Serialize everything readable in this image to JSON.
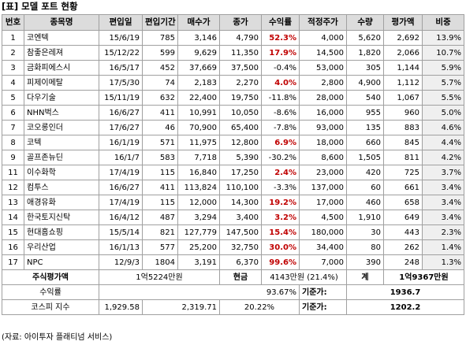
{
  "title": "[표] 모델 포트 현황",
  "headers": [
    "번호",
    "종목명",
    "편입일",
    "편입기간",
    "매수가",
    "종가",
    "수익률",
    "적정주가",
    "수량",
    "평가액",
    "비중"
  ],
  "rows": [
    {
      "no": "1",
      "name": "코엔텍",
      "date": "15/6/19",
      "period": "785",
      "buy": "3,146",
      "close": "4,790",
      "ret": "52.3%",
      "fair": "4,000",
      "qty": "5,620",
      "value": "2,692",
      "weight": "13.9%"
    },
    {
      "no": "2",
      "name": "참좋은레져",
      "date": "15/12/22",
      "period": "599",
      "buy": "9,629",
      "close": "11,350",
      "ret": "17.9%",
      "fair": "14,500",
      "qty": "1,820",
      "value": "2,066",
      "weight": "10.7%"
    },
    {
      "no": "3",
      "name": "금화피에스시",
      "date": "16/5/17",
      "period": "452",
      "buy": "37,669",
      "close": "37,500",
      "ret": "-0.4%",
      "fair": "53,000",
      "qty": "305",
      "value": "1,144",
      "weight": "5.9%"
    },
    {
      "no": "4",
      "name": "피제이메탈",
      "date": "17/5/30",
      "period": "74",
      "buy": "2,183",
      "close": "2,270",
      "ret": "4.0%",
      "fair": "2,800",
      "qty": "4,900",
      "value": "1,112",
      "weight": "5.7%"
    },
    {
      "no": "5",
      "name": "다우기술",
      "date": "15/11/19",
      "period": "632",
      "buy": "22,400",
      "close": "19,750",
      "ret": "-11.8%",
      "fair": "28,000",
      "qty": "540",
      "value": "1,067",
      "weight": "5.5%"
    },
    {
      "no": "6",
      "name": "NHN벅스",
      "date": "16/6/27",
      "period": "411",
      "buy": "10,991",
      "close": "10,050",
      "ret": "-8.6%",
      "fair": "16,000",
      "qty": "955",
      "value": "960",
      "weight": "5.0%"
    },
    {
      "no": "7",
      "name": "코오롱인더",
      "date": "17/6/27",
      "period": "46",
      "buy": "70,900",
      "close": "65,400",
      "ret": "-7.8%",
      "fair": "93,000",
      "qty": "135",
      "value": "883",
      "weight": "4.6%"
    },
    {
      "no": "8",
      "name": "코텍",
      "date": "16/1/19",
      "period": "571",
      "buy": "11,975",
      "close": "12,800",
      "ret": "6.9%",
      "fair": "18,000",
      "qty": "660",
      "value": "845",
      "weight": "4.4%"
    },
    {
      "no": "9",
      "name": "골프존뉴딘",
      "date": "16/1/7",
      "period": "583",
      "buy": "7,718",
      "close": "5,390",
      "ret": "-30.2%",
      "fair": "8,600",
      "qty": "1,505",
      "value": "811",
      "weight": "4.2%"
    },
    {
      "no": "11",
      "name": "이수화학",
      "date": "17/4/19",
      "period": "115",
      "buy": "16,840",
      "close": "17,250",
      "ret": "2.4%",
      "fair": "23,000",
      "qty": "420",
      "value": "725",
      "weight": "3.7%"
    },
    {
      "no": "12",
      "name": "컴투스",
      "date": "16/6/27",
      "period": "411",
      "buy": "113,824",
      "close": "110,100",
      "ret": "-3.3%",
      "fair": "137,000",
      "qty": "60",
      "value": "661",
      "weight": "3.4%"
    },
    {
      "no": "13",
      "name": "애경유화",
      "date": "17/4/19",
      "period": "115",
      "buy": "12,000",
      "close": "14,300",
      "ret": "19.2%",
      "fair": "17,000",
      "qty": "460",
      "value": "658",
      "weight": "3.4%"
    },
    {
      "no": "14",
      "name": "한국토지신탁",
      "date": "16/4/12",
      "period": "487",
      "buy": "3,294",
      "close": "3,400",
      "ret": "3.2%",
      "fair": "4,500",
      "qty": "1,910",
      "value": "649",
      "weight": "3.4%"
    },
    {
      "no": "15",
      "name": "현대홈쇼핑",
      "date": "15/5/14",
      "period": "821",
      "buy": "127,779",
      "close": "147,500",
      "ret": "15.4%",
      "fair": "180,000",
      "qty": "30",
      "value": "443",
      "weight": "2.3%"
    },
    {
      "no": "16",
      "name": "우리산업",
      "date": "16/1/13",
      "period": "577",
      "buy": "25,200",
      "close": "32,750",
      "ret": "30.0%",
      "fair": "34,400",
      "qty": "80",
      "value": "262",
      "weight": "1.4%"
    },
    {
      "no": "17",
      "name": "NPC",
      "date": "12/9/3",
      "period": "1804",
      "buy": "3,191",
      "close": "6,370",
      "ret": "99.6%",
      "fair": "7,000",
      "qty": "390",
      "value": "248",
      "weight": "1.3%"
    }
  ],
  "summary": {
    "stock_value_label": "주식평가액",
    "stock_value": "1억5224만원",
    "cash_label": "현금",
    "cash_value": "4143만원 (21.4%)",
    "total_label": "계",
    "total_value": "1억9367만원",
    "return_label": "수익률",
    "return_value": "93.67%",
    "return_base_label": "기준가:",
    "return_base_value": "1936.7",
    "kospi_label": "코스피 지수",
    "kospi_current": "1,929.58",
    "kospi_base": "2,319.71",
    "kospi_change": "20.22%",
    "kospi_base_label": "기준가:",
    "kospi_base_value": "1202.2"
  },
  "source": "(자료: 아이투자 플래티넘 서비스)"
}
